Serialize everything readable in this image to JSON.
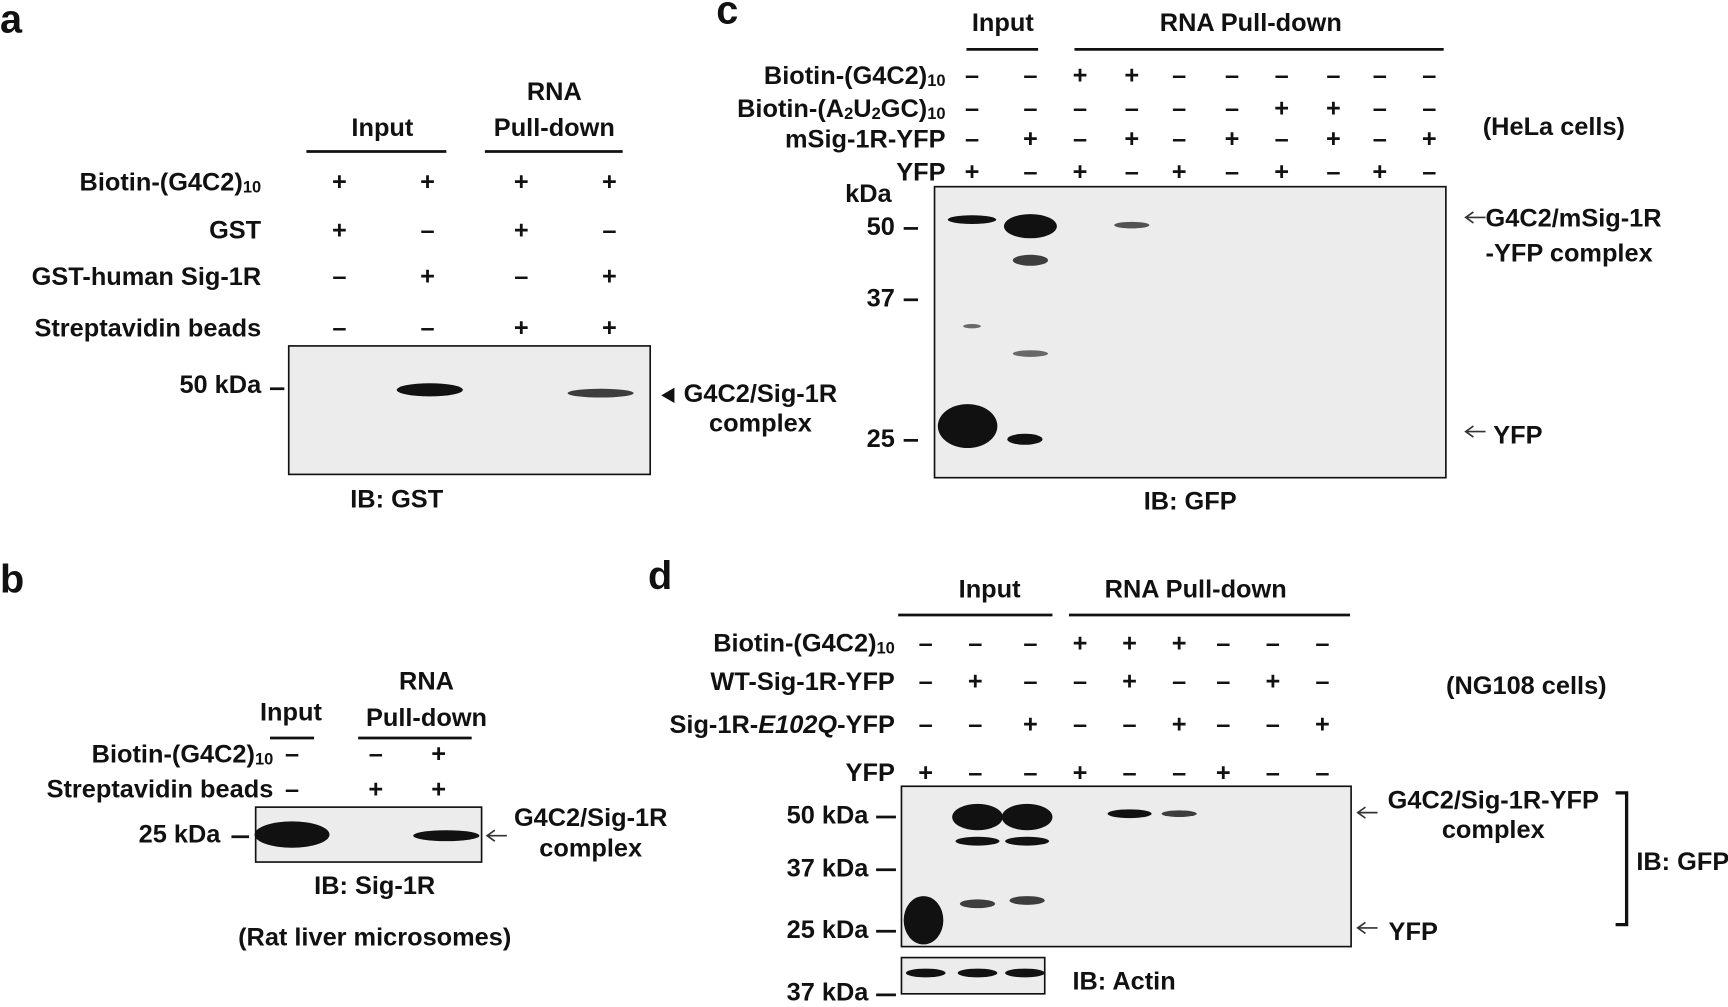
{
  "panel_a": {
    "label": "a",
    "groups": [
      {
        "lines": [
          "Input"
        ]
      },
      {
        "lines": [
          "RNA",
          "Pull-down"
        ]
      }
    ],
    "rows": [
      {
        "label": [
          {
            "text": "Biotin-(G4C2)"
          },
          {
            "text": "10",
            "style": "sub"
          }
        ],
        "signs": [
          "+",
          "+",
          "+",
          "+"
        ]
      },
      {
        "label": [
          {
            "text": "GST"
          }
        ],
        "signs": [
          "+",
          "–",
          "+",
          "–"
        ]
      },
      {
        "label": [
          {
            "text": "GST-human Sig-1R"
          }
        ],
        "signs": [
          "–",
          "+",
          "–",
          "+"
        ]
      },
      {
        "label": [
          {
            "text": "Streptavidin beads"
          }
        ],
        "signs": [
          "–",
          "–",
          "+",
          "+"
        ]
      }
    ],
    "markers": [
      "50 kDa"
    ],
    "annotations": [
      {
        "lines": [
          "G4C2/Sig-1R",
          "complex"
        ]
      }
    ],
    "blot_label": "IB: GST"
  },
  "panel_b": {
    "label": "b",
    "groups": [
      {
        "lines": [
          "Input"
        ]
      },
      {
        "lines": [
          "RNA",
          "Pull-down"
        ]
      }
    ],
    "rows": [
      {
        "label": [
          {
            "text": "Biotin-(G4C2)"
          },
          {
            "text": "10",
            "style": "sub"
          }
        ],
        "signs": [
          "–",
          "–",
          "+"
        ]
      },
      {
        "label": [
          {
            "text": "Streptavidin beads"
          }
        ],
        "signs": [
          "–",
          "+",
          "+"
        ]
      }
    ],
    "markers": [
      "25 kDa"
    ],
    "annotations": [
      {
        "lines": [
          "G4C2/Sig-1R",
          "complex"
        ]
      }
    ],
    "blot_label": "IB: Sig-1R",
    "note": "(Rat liver microsomes)"
  },
  "panel_c": {
    "label": "c",
    "groups": [
      {
        "lines": [
          "Input"
        ]
      },
      {
        "lines": [
          "RNA Pull-down"
        ]
      }
    ],
    "rows": [
      {
        "label": [
          {
            "text": "Biotin-(G4C2)"
          },
          {
            "text": "10",
            "style": "sub"
          }
        ],
        "signs": [
          "–",
          "–",
          "+",
          "+",
          "–",
          "–",
          "–",
          "–",
          "–",
          "–"
        ]
      },
      {
        "label": [
          {
            "text": "Biotin-(A"
          },
          {
            "text": "2",
            "style": "sub"
          },
          {
            "text": "U"
          },
          {
            "text": "2",
            "style": "sub"
          },
          {
            "text": "GC)"
          },
          {
            "text": "10",
            "style": "sub"
          }
        ],
        "signs": [
          "–",
          "–",
          "–",
          "–",
          "–",
          "–",
          "+",
          "+",
          "–",
          "–"
        ]
      },
      {
        "label": [
          {
            "text": "mSig-1R-YFP"
          }
        ],
        "signs": [
          "–",
          "+",
          "–",
          "+",
          "–",
          "+",
          "–",
          "+",
          "–",
          "+"
        ]
      },
      {
        "label": [
          {
            "text": "YFP"
          }
        ],
        "signs": [
          "+",
          "–",
          "+",
          "–",
          "+",
          "–",
          "+",
          "–",
          "+",
          "–"
        ]
      }
    ],
    "cells": "(HeLa cells)",
    "unit": "kDa",
    "markers": [
      "50",
      "37",
      "25"
    ],
    "annotations": [
      {
        "lines": [
          "G4C2/mSig-1R",
          "-YFP complex"
        ]
      },
      {
        "lines": [
          "YFP"
        ]
      }
    ],
    "blot_label": "IB: GFP"
  },
  "panel_d": {
    "label": "d",
    "groups": [
      {
        "lines": [
          "Input"
        ]
      },
      {
        "lines": [
          "RNA Pull-down"
        ]
      }
    ],
    "rows": [
      {
        "label": [
          {
            "text": "Biotin-(G4C2)"
          },
          {
            "text": "10",
            "style": "sub"
          }
        ],
        "signs": [
          "–",
          "–",
          "–",
          "+",
          "+",
          "+",
          "–",
          "–",
          "–"
        ]
      },
      {
        "label": [
          {
            "text": "WT-Sig-1R-YFP"
          }
        ],
        "signs": [
          "–",
          "+",
          "–",
          "–",
          "+",
          "–",
          "–",
          "+",
          "–"
        ]
      },
      {
        "label": [
          {
            "text": "Sig-1R-"
          },
          {
            "text": "E102Q",
            "style": "italic"
          },
          {
            "text": "-YFP"
          }
        ],
        "signs": [
          "–",
          "–",
          "+",
          "–",
          "–",
          "+",
          "–",
          "–",
          "+"
        ]
      },
      {
        "label": [
          {
            "text": "YFP"
          }
        ],
        "signs": [
          "+",
          "–",
          "–",
          "+",
          "–",
          "–",
          "+",
          "–",
          "–"
        ]
      }
    ],
    "cells": "(NG108 cells)",
    "markers": [
      "50 kDa",
      "37 kDa",
      "25 kDa"
    ],
    "actin_marker": "37 kDa",
    "annotations": [
      {
        "lines": [
          "G4C2/Sig-1R-YFP",
          "complex"
        ]
      },
      {
        "lines": [
          "YFP"
        ]
      }
    ],
    "blot_label": "IB: GFP",
    "actin_label": "IB: Actin"
  }
}
